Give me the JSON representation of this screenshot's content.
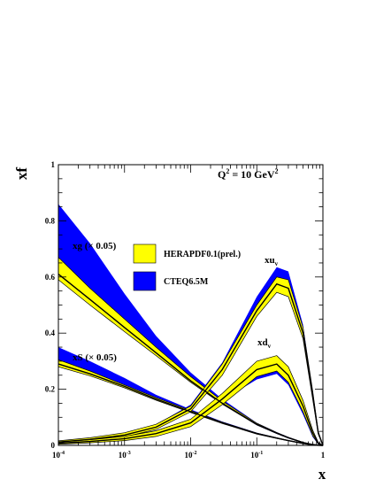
{
  "chart_data": {
    "type": "area",
    "xscale": "log",
    "xlim": [
      0.0001,
      1
    ],
    "ylim": [
      0,
      1
    ],
    "xlabel": "x",
    "ylabel": "xf",
    "annotation_q2": {
      "prefix": "Q",
      "sup": "2",
      "mid": " = 10 GeV",
      "sup2": "2"
    },
    "x_ticks": [
      {
        "value": 0.0001,
        "base": "10",
        "exp": "-4"
      },
      {
        "value": 0.001,
        "base": "10",
        "exp": "-3"
      },
      {
        "value": 0.01,
        "base": "10",
        "exp": "-2"
      },
      {
        "value": 0.1,
        "base": "10",
        "exp": "-1"
      },
      {
        "value": 1,
        "base": "1",
        "exp": ""
      }
    ],
    "y_ticks": [
      {
        "value": 0,
        "label": "0"
      },
      {
        "value": 0.2,
        "label": "0.2"
      },
      {
        "value": 0.4,
        "label": "0.4"
      },
      {
        "value": 0.6,
        "label": "0.6"
      },
      {
        "value": 0.8,
        "label": "0.8"
      },
      {
        "value": 1,
        "label": "1"
      }
    ],
    "legend": [
      {
        "label": "HERAPDF0.1(prel.)",
        "color": "#ffff00"
      },
      {
        "label": "CTEQ6.5M",
        "color": "#0000ff"
      }
    ],
    "curve_labels": [
      {
        "id": "xg",
        "base": "xg",
        "sub": "",
        "suffix": " (× 0.05)"
      },
      {
        "id": "xS",
        "base": "xS (× 0.05)",
        "sub": "",
        "suffix": ""
      },
      {
        "id": "xuv",
        "base": "xu",
        "sub": "v",
        "suffix": ""
      },
      {
        "id": "xdv",
        "base": "xd",
        "sub": "v",
        "suffix": ""
      }
    ],
    "x": [
      0.0001,
      0.0003,
      0.001,
      0.003,
      0.01,
      0.03,
      0.1,
      0.2,
      0.3,
      0.5,
      0.7,
      0.85,
      1.0
    ],
    "series": [
      {
        "name": "xg (× 0.05)",
        "hera_central": [
          0.61,
          0.52,
          0.42,
          0.33,
          0.23,
          0.15,
          0.075,
          0.044,
          0.027,
          0.01,
          0.003,
          0.0005,
          0.0
        ],
        "hera_lower": [
          0.59,
          0.5,
          0.405,
          0.32,
          0.225,
          0.147,
          0.073,
          0.042,
          0.026,
          0.009,
          0.0025,
          0.0004,
          0.0
        ],
        "hera_upper": [
          0.67,
          0.56,
          0.45,
          0.35,
          0.245,
          0.158,
          0.079,
          0.046,
          0.029,
          0.011,
          0.0035,
          0.0006,
          0.0
        ],
        "cteq_lower": [
          0.62,
          0.55,
          0.44,
          0.335,
          0.23,
          0.148,
          0.072,
          0.041,
          0.025,
          0.009,
          0.0025,
          0.0004,
          0.0
        ],
        "cteq_upper": [
          0.86,
          0.72,
          0.54,
          0.39,
          0.26,
          0.165,
          0.08,
          0.047,
          0.03,
          0.011,
          0.0035,
          0.0006,
          0.0
        ]
      },
      {
        "name": "xS (× 0.05)",
        "hera_central": [
          0.29,
          0.255,
          0.21,
          0.165,
          0.12,
          0.08,
          0.042,
          0.026,
          0.017,
          0.007,
          0.002,
          0.0003,
          0.0
        ],
        "hera_lower": [
          0.28,
          0.248,
          0.205,
          0.161,
          0.117,
          0.078,
          0.04,
          0.025,
          0.016,
          0.0065,
          0.0018,
          0.0002,
          0.0
        ],
        "hera_upper": [
          0.305,
          0.265,
          0.215,
          0.17,
          0.124,
          0.083,
          0.044,
          0.027,
          0.018,
          0.0075,
          0.0022,
          0.0004,
          0.0
        ],
        "cteq_lower": [
          0.3,
          0.26,
          0.21,
          0.163,
          0.118,
          0.079,
          0.041,
          0.025,
          0.016,
          0.0065,
          0.0018,
          0.0002,
          0.0
        ],
        "cteq_upper": [
          0.35,
          0.3,
          0.24,
          0.18,
          0.128,
          0.085,
          0.045,
          0.028,
          0.018,
          0.0075,
          0.0022,
          0.0004,
          0.0
        ]
      },
      {
        "name": "xu_v",
        "hera_central": [
          0.012,
          0.021,
          0.037,
          0.065,
          0.13,
          0.27,
          0.48,
          0.575,
          0.56,
          0.4,
          0.18,
          0.045,
          0.0
        ],
        "hera_lower": [
          0.008,
          0.016,
          0.03,
          0.057,
          0.12,
          0.25,
          0.46,
          0.545,
          0.53,
          0.38,
          0.165,
          0.04,
          0.0
        ],
        "hera_upper": [
          0.016,
          0.027,
          0.045,
          0.075,
          0.14,
          0.29,
          0.5,
          0.6,
          0.59,
          0.42,
          0.195,
          0.05,
          0.0
        ],
        "cteq_lower": [
          0.01,
          0.018,
          0.034,
          0.063,
          0.13,
          0.275,
          0.5,
          0.6,
          0.58,
          0.4,
          0.17,
          0.04,
          0.0
        ],
        "cteq_upper": [
          0.016,
          0.026,
          0.044,
          0.074,
          0.145,
          0.295,
          0.53,
          0.635,
          0.62,
          0.43,
          0.19,
          0.05,
          0.0
        ]
      },
      {
        "name": "xd_v",
        "hera_central": [
          0.008,
          0.014,
          0.024,
          0.042,
          0.08,
          0.165,
          0.27,
          0.29,
          0.25,
          0.14,
          0.045,
          0.008,
          0.0
        ],
        "hera_lower": [
          0.004,
          0.009,
          0.017,
          0.032,
          0.067,
          0.145,
          0.245,
          0.265,
          0.225,
          0.12,
          0.035,
          0.005,
          0.0
        ],
        "hera_upper": [
          0.012,
          0.02,
          0.032,
          0.052,
          0.093,
          0.185,
          0.3,
          0.32,
          0.28,
          0.16,
          0.055,
          0.011,
          0.0
        ],
        "cteq_lower": [
          0.007,
          0.013,
          0.022,
          0.04,
          0.077,
          0.16,
          0.235,
          0.255,
          0.215,
          0.11,
          0.03,
          0.004,
          0.0
        ],
        "cteq_upper": [
          0.012,
          0.019,
          0.03,
          0.05,
          0.09,
          0.18,
          0.27,
          0.29,
          0.25,
          0.14,
          0.045,
          0.008,
          0.0
        ]
      }
    ]
  }
}
